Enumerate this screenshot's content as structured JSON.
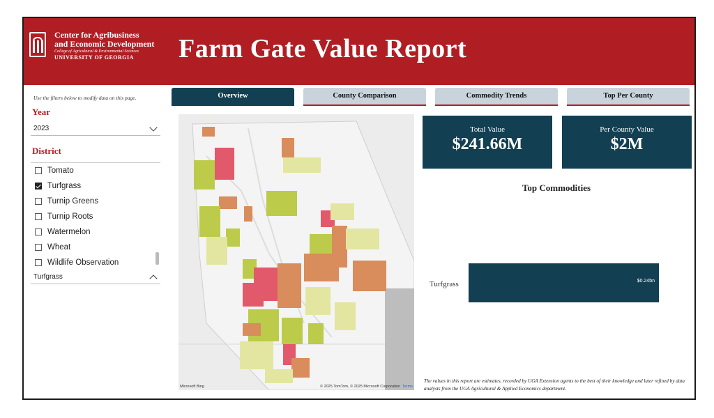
{
  "header": {
    "org_line1": "Center for Agribusiness",
    "org_line2": "and Economic Development",
    "org_line3": "College of Agricultural & Environmental Sciences",
    "org_line4": "UNIVERSITY OF GEORGIA",
    "title": "Farm Gate Value Report",
    "banner_color": "#b01e24",
    "logo_icon": "arch-logo-icon"
  },
  "filters": {
    "hint": "Use the filters below to modify data on this page.",
    "year_label": "Year",
    "year_value": "2023",
    "district_label": "District",
    "commodity_items": [
      {
        "label": "Tomato",
        "checked": false
      },
      {
        "label": "Turfgrass",
        "checked": true
      },
      {
        "label": "Turnip Greens",
        "checked": false
      },
      {
        "label": "Turnip Roots",
        "checked": false
      },
      {
        "label": "Watermelon",
        "checked": false
      },
      {
        "label": "Wheat",
        "checked": false
      },
      {
        "label": "Wildlife Observation",
        "checked": false
      }
    ],
    "commodity_selected": "Turfgrass"
  },
  "tabs": [
    {
      "label": "Overview",
      "active": true
    },
    {
      "label": "County Comparison",
      "active": false
    },
    {
      "label": "Commodity Trends",
      "active": false
    },
    {
      "label": "Top Per County",
      "active": false
    }
  ],
  "map": {
    "attribution_left": "Microsoft Bing",
    "attribution_right": "© 2025 TomTom, © 2025 Microsoft Corporation",
    "terms": "Terms"
  },
  "kpis": {
    "total_label": "Total Value",
    "total_value": "$241.66M",
    "per_county_label": "Per County Value",
    "per_county_value": "$2M",
    "card_color": "#123f52"
  },
  "chart_data": {
    "type": "bar",
    "title": "Top Commodities",
    "orientation": "horizontal",
    "categories": [
      "Turfgrass"
    ],
    "values": [
      0.24
    ],
    "value_labels": [
      "$0.24bn"
    ],
    "xlim": [
      0,
      0.25
    ],
    "color": "#123f52"
  },
  "footnote": "The values in this report are estimates, recorded by UGA Extension agents to the best of their knowledge and later refined by data analysts from the UGA Agricultural & Applied Economics department."
}
